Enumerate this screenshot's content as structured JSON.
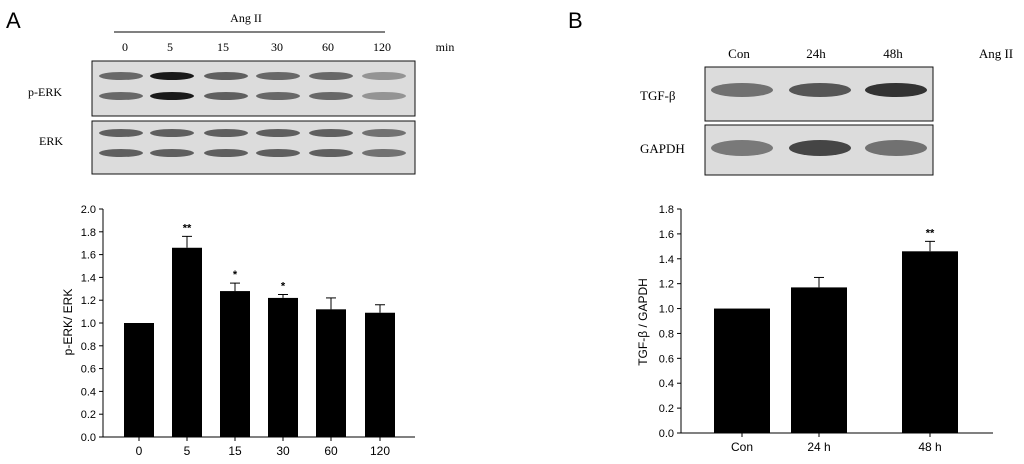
{
  "panel_a": {
    "letter": "A",
    "treatment": "Ang II",
    "time_points": [
      "0",
      "5",
      "15",
      "30",
      "60",
      "120"
    ],
    "time_unit": "min",
    "blot_labels": [
      "p-ERK",
      "ERK"
    ],
    "band_intensity": {
      "p-ERK": [
        0.55,
        1.0,
        0.6,
        0.55,
        0.55,
        0.3
      ],
      "ERK": [
        0.6,
        0.6,
        0.6,
        0.6,
        0.6,
        0.5
      ]
    }
  },
  "panel_b": {
    "letter": "B",
    "treatment": "Ang II",
    "lanes": [
      "Con",
      "24h",
      "48h"
    ],
    "blot_labels": [
      "TGF-β",
      "GAPDH"
    ],
    "band_intensity": {
      "TGF-β": [
        0.5,
        0.65,
        0.85
      ],
      "GAPDH": [
        0.45,
        0.75,
        0.5
      ]
    }
  },
  "chart_data": [
    {
      "type": "bar",
      "categories": [
        "0",
        "5",
        "15",
        "30",
        "60",
        "120"
      ],
      "values": [
        1.0,
        1.66,
        1.28,
        1.22,
        1.12,
        1.09
      ],
      "errors": [
        0,
        0.1,
        0.07,
        0.03,
        0.1,
        0.07
      ],
      "significance": [
        "",
        "**",
        "*",
        "*",
        "",
        ""
      ],
      "title": "",
      "xlabel": "",
      "ylabel": "p-ERK/ ERK",
      "ylim": [
        0,
        2.0
      ],
      "yticks": [
        "0.0",
        "0.2",
        "0.4",
        "0.6",
        "0.8",
        "1.0",
        "1.2",
        "1.4",
        "1.6",
        "1.8",
        "2.0"
      ],
      "bar_color": "#000000"
    },
    {
      "type": "bar",
      "categories": [
        "Con",
        "24 h",
        "48 h"
      ],
      "values": [
        1.0,
        1.17,
        1.46
      ],
      "errors": [
        0,
        0.08,
        0.08
      ],
      "significance": [
        "",
        "",
        "**"
      ],
      "title": "",
      "xlabel": "",
      "ylabel": "TGF-β / GAPDH",
      "ylim": [
        0,
        1.8
      ],
      "yticks": [
        "0.0",
        "0.2",
        "0.4",
        "0.6",
        "0.8",
        "1.0",
        "1.2",
        "1.4",
        "1.6",
        "1.8"
      ],
      "bar_color": "#000000"
    }
  ]
}
